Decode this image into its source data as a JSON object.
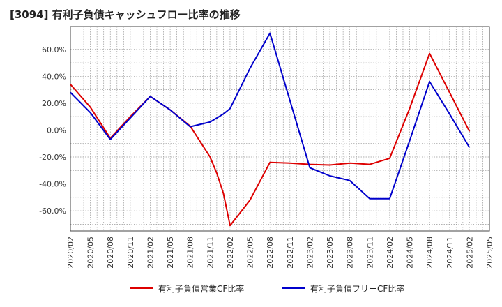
{
  "chart_data": {
    "type": "line",
    "title": "[3094]  有利子負債キャッシュフロー比率の推移",
    "x": [
      "2020/02",
      "2020/05",
      "2020/08",
      "2020/11",
      "2021/02",
      "2021/05",
      "2021/08",
      "2021/11",
      "2022/02",
      "2022/05",
      "2022/08",
      "2022/11",
      "2023/02",
      "2023/05",
      "2023/08",
      "2023/11",
      "2024/02",
      "2024/05",
      "2024/08",
      "2024/11",
      "2025/02",
      "2025/05"
    ],
    "ylim": [
      -75,
      77
    ],
    "yticks": [
      "60.0%",
      "40.0%",
      "20.0%",
      "0.0%",
      "-20.0%",
      "-40.0%",
      "-60.0%"
    ],
    "ytick_values": [
      60,
      40,
      20,
      0,
      -20,
      -40,
      -60
    ],
    "grid": true,
    "legend_position": "bottom",
    "series": [
      {
        "name": "有利子負債営業CF比率",
        "color": "#dd0000",
        "points": [
          [
            "2020/02",
            34.0
          ],
          [
            "2020/05",
            17.0
          ],
          [
            "2020/08",
            -6.0
          ],
          [
            "2020/11",
            10.0
          ],
          [
            "2021/02",
            25.0
          ],
          [
            "2021/05",
            15.0
          ],
          [
            "2021/08",
            3.0
          ],
          [
            "2021/11",
            -20.0
          ],
          [
            "2021/12",
            -32.0
          ],
          [
            "2022/01",
            -47.0
          ],
          [
            "2022/02",
            -71.0
          ],
          [
            "2022/05",
            -52.0
          ],
          [
            "2022/08",
            -24.0
          ],
          [
            "2022/11",
            -24.5
          ],
          [
            "2023/02",
            -25.5
          ],
          [
            "2023/05",
            -26.0
          ],
          [
            "2023/08",
            -24.5
          ],
          [
            "2023/11",
            -25.5
          ],
          [
            "2024/02",
            -21.0
          ],
          [
            "2024/05",
            16.0
          ],
          [
            "2024/08",
            57.0
          ],
          [
            "2024/11",
            28.0
          ],
          [
            "2025/02",
            -1.0
          ]
        ]
      },
      {
        "name": "有利子負債フリーCF比率",
        "color": "#0000cc",
        "points": [
          [
            "2020/02",
            28.0
          ],
          [
            "2020/05",
            13.0
          ],
          [
            "2020/08",
            -7.0
          ],
          [
            "2020/11",
            9.0
          ],
          [
            "2021/02",
            25.0
          ],
          [
            "2021/05",
            15.0
          ],
          [
            "2021/08",
            2.5
          ],
          [
            "2021/11",
            6.0
          ],
          [
            "2021/12",
            9.0
          ],
          [
            "2022/01",
            12.0
          ],
          [
            "2022/02",
            16.0
          ],
          [
            "2022/05",
            46.0
          ],
          [
            "2022/08",
            72.0
          ],
          [
            "2022/11",
            22.0
          ],
          [
            "2023/02",
            -28.0
          ],
          [
            "2023/05",
            -34.0
          ],
          [
            "2023/08",
            -37.5
          ],
          [
            "2023/11",
            -51.0
          ],
          [
            "2024/02",
            -51.0
          ],
          [
            "2024/05",
            -8.0
          ],
          [
            "2024/08",
            36.0
          ],
          [
            "2024/11",
            12.0
          ],
          [
            "2025/02",
            -13.0
          ]
        ]
      }
    ]
  }
}
